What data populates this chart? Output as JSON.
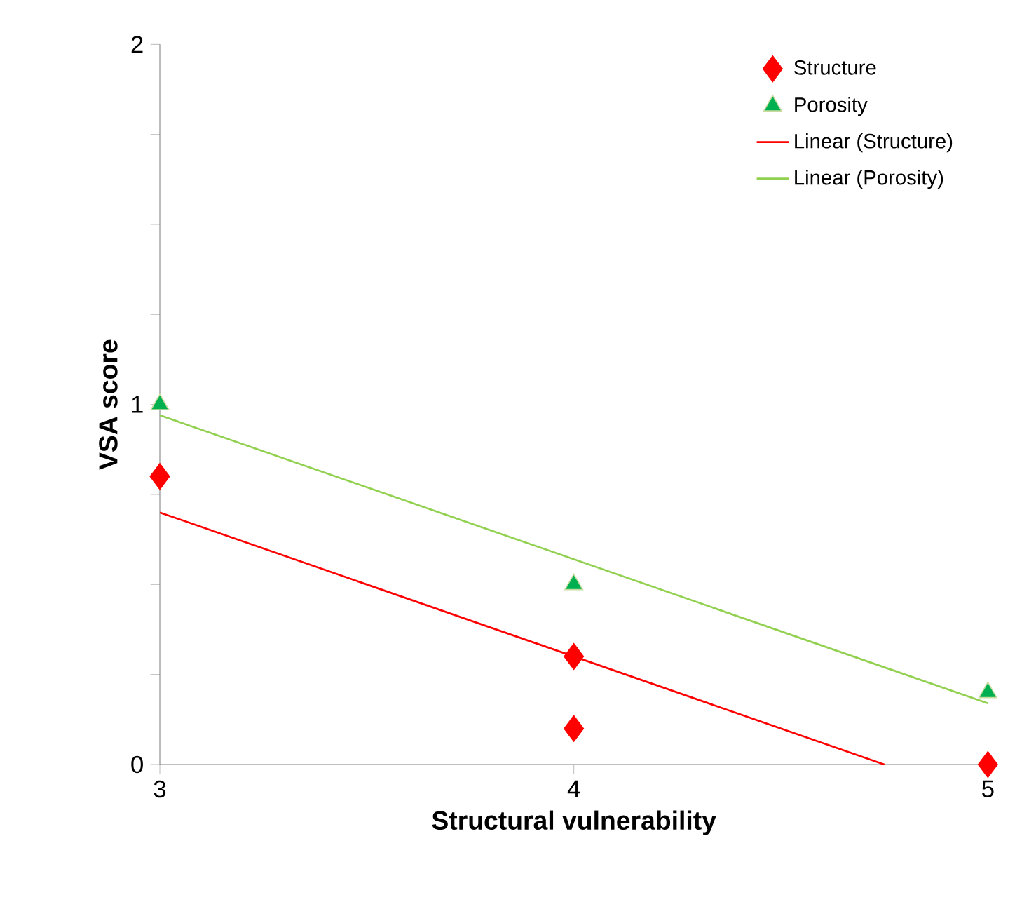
{
  "chart_data": {
    "type": "scatter",
    "xlabel": "Structural vulnerability",
    "ylabel": "VSA score",
    "x": [
      3,
      4,
      4,
      5
    ],
    "series": [
      {
        "name": "Structure",
        "color": "#ff0000",
        "marker": "diamond",
        "values": [
          0.8,
          0.3,
          0.1,
          0
        ]
      },
      {
        "name": "Porosity",
        "color": "#00b050",
        "marker": "triangle",
        "x": [
          3,
          4,
          5
        ],
        "values": [
          1,
          0.5,
          0.2
        ]
      },
      {
        "name": "Linear (Structure)",
        "type": "line",
        "color": "#ff0000",
        "line_style": "solid",
        "x": [
          3,
          4.75
        ],
        "values": [
          0.7,
          0
        ]
      },
      {
        "name": "Linear (Porosity)",
        "type": "line",
        "color": "#92d050",
        "line_style": "solid",
        "x": [
          3,
          5
        ],
        "values": [
          0.97,
          0.17
        ]
      }
    ],
    "xlim": [
      3,
      5
    ],
    "ylim": [
      0,
      2
    ],
    "xticks": [
      3,
      4,
      5
    ],
    "yticks": [
      0,
      {
        "value": 0.25,
        "label": null
      },
      {
        "value": 0.5,
        "label": null
      },
      {
        "value": 0.75,
        "label": null
      },
      1,
      {
        "value": 1.25,
        "label": null
      },
      {
        "value": 1.5,
        "label": null
      },
      {
        "value": 1.75,
        "label": null
      },
      2
    ],
    "legend": "top right",
    "grid": false
  }
}
